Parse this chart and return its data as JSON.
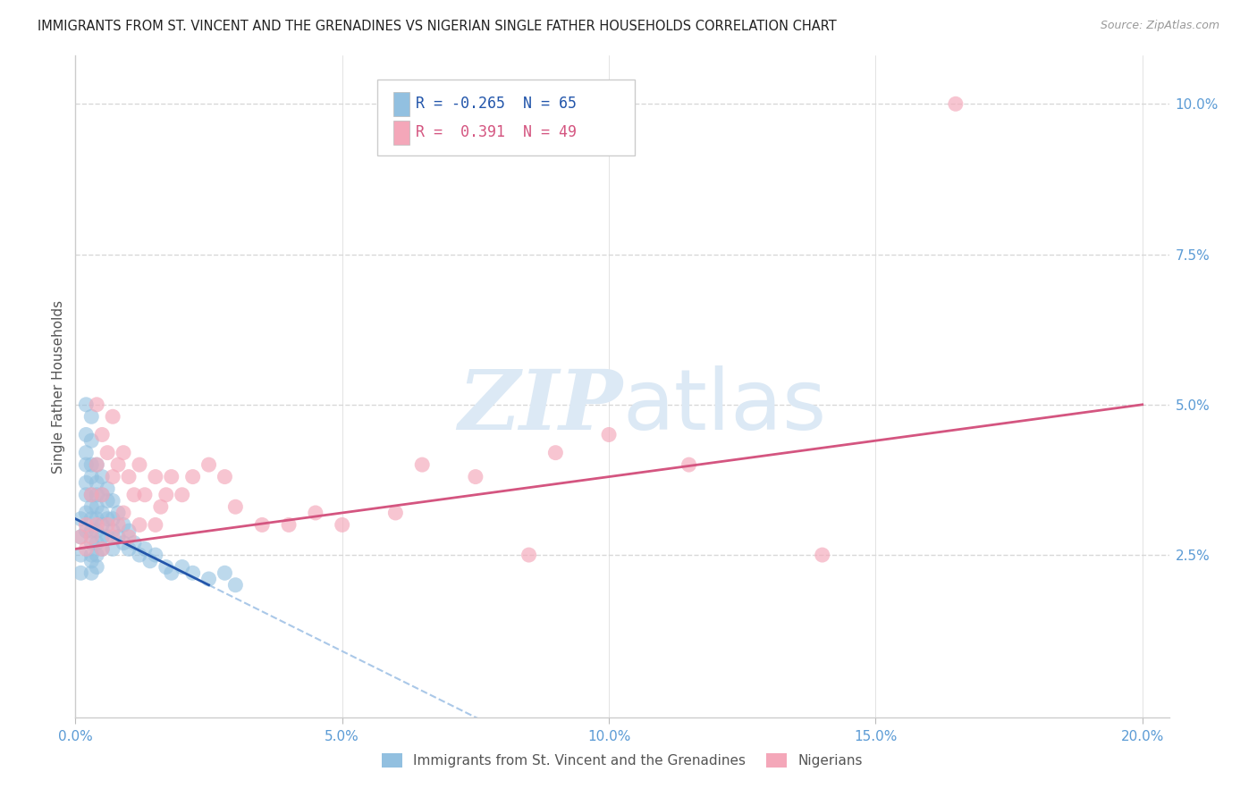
{
  "title": "IMMIGRANTS FROM ST. VINCENT AND THE GRENADINES VS NIGERIAN SINGLE FATHER HOUSEHOLDS CORRELATION CHART",
  "source": "Source: ZipAtlas.com",
  "ylabel": "Single Father Households",
  "ytick_labels": [
    "",
    "2.5%",
    "5.0%",
    "7.5%",
    "10.0%"
  ],
  "ytick_values": [
    0.0,
    0.025,
    0.05,
    0.075,
    0.1
  ],
  "xtick_values": [
    0.0,
    0.05,
    0.1,
    0.15,
    0.2
  ],
  "xtick_labels": [
    "0.0%",
    "5.0%",
    "10.0%",
    "15.0%",
    "20.0%"
  ],
  "xlim": [
    0.0,
    0.205
  ],
  "ylim": [
    -0.002,
    0.108
  ],
  "legend_r1": "R = -0.265",
  "legend_n1": "N = 65",
  "legend_r2": "R =  0.391",
  "legend_n2": "N = 49",
  "color_blue": "#92c0e0",
  "color_pink": "#f4a7b9",
  "color_line_blue": "#2255aa",
  "color_line_pink": "#d45580",
  "color_trendline_dashed": "#aac8e8",
  "color_axis_labels": "#5b9bd5",
  "watermark_color": "#dce9f5",
  "background_color": "#ffffff",
  "grid_color": "#d8d8d8",
  "label_blue": "Immigrants from St. Vincent and the Grenadines",
  "label_pink": "Nigerians",
  "blue_x": [
    0.001,
    0.001,
    0.001,
    0.001,
    0.002,
    0.002,
    0.002,
    0.002,
    0.002,
    0.002,
    0.002,
    0.002,
    0.003,
    0.003,
    0.003,
    0.003,
    0.003,
    0.003,
    0.003,
    0.003,
    0.003,
    0.003,
    0.003,
    0.003,
    0.004,
    0.004,
    0.004,
    0.004,
    0.004,
    0.004,
    0.004,
    0.004,
    0.004,
    0.005,
    0.005,
    0.005,
    0.005,
    0.005,
    0.005,
    0.006,
    0.006,
    0.006,
    0.006,
    0.007,
    0.007,
    0.007,
    0.007,
    0.008,
    0.008,
    0.009,
    0.009,
    0.01,
    0.01,
    0.011,
    0.012,
    0.013,
    0.014,
    0.015,
    0.017,
    0.018,
    0.02,
    0.022,
    0.025,
    0.028,
    0.03
  ],
  "blue_y": [
    0.031,
    0.028,
    0.025,
    0.022,
    0.05,
    0.045,
    0.042,
    0.04,
    0.037,
    0.035,
    0.032,
    0.029,
    0.048,
    0.044,
    0.04,
    0.038,
    0.035,
    0.033,
    0.031,
    0.029,
    0.027,
    0.025,
    0.024,
    0.022,
    0.04,
    0.037,
    0.035,
    0.033,
    0.031,
    0.029,
    0.027,
    0.025,
    0.023,
    0.038,
    0.035,
    0.032,
    0.03,
    0.028,
    0.026,
    0.036,
    0.034,
    0.031,
    0.028,
    0.034,
    0.031,
    0.029,
    0.026,
    0.032,
    0.028,
    0.03,
    0.027,
    0.029,
    0.026,
    0.027,
    0.025,
    0.026,
    0.024,
    0.025,
    0.023,
    0.022,
    0.023,
    0.022,
    0.021,
    0.022,
    0.02
  ],
  "pink_x": [
    0.001,
    0.002,
    0.002,
    0.003,
    0.003,
    0.004,
    0.004,
    0.004,
    0.005,
    0.005,
    0.005,
    0.006,
    0.006,
    0.007,
    0.007,
    0.007,
    0.008,
    0.008,
    0.009,
    0.009,
    0.01,
    0.01,
    0.011,
    0.012,
    0.012,
    0.013,
    0.015,
    0.015,
    0.016,
    0.017,
    0.018,
    0.02,
    0.022,
    0.025,
    0.028,
    0.03,
    0.035,
    0.04,
    0.045,
    0.05,
    0.06,
    0.065,
    0.075,
    0.085,
    0.09,
    0.1,
    0.115,
    0.14,
    0.165
  ],
  "pink_y": [
    0.028,
    0.03,
    0.026,
    0.035,
    0.028,
    0.05,
    0.04,
    0.03,
    0.045,
    0.035,
    0.026,
    0.042,
    0.03,
    0.048,
    0.038,
    0.028,
    0.04,
    0.03,
    0.042,
    0.032,
    0.038,
    0.028,
    0.035,
    0.04,
    0.03,
    0.035,
    0.038,
    0.03,
    0.033,
    0.035,
    0.038,
    0.035,
    0.038,
    0.04,
    0.038,
    0.033,
    0.03,
    0.03,
    0.032,
    0.03,
    0.032,
    0.04,
    0.038,
    0.025,
    0.042,
    0.045,
    0.04,
    0.025,
    0.1
  ]
}
